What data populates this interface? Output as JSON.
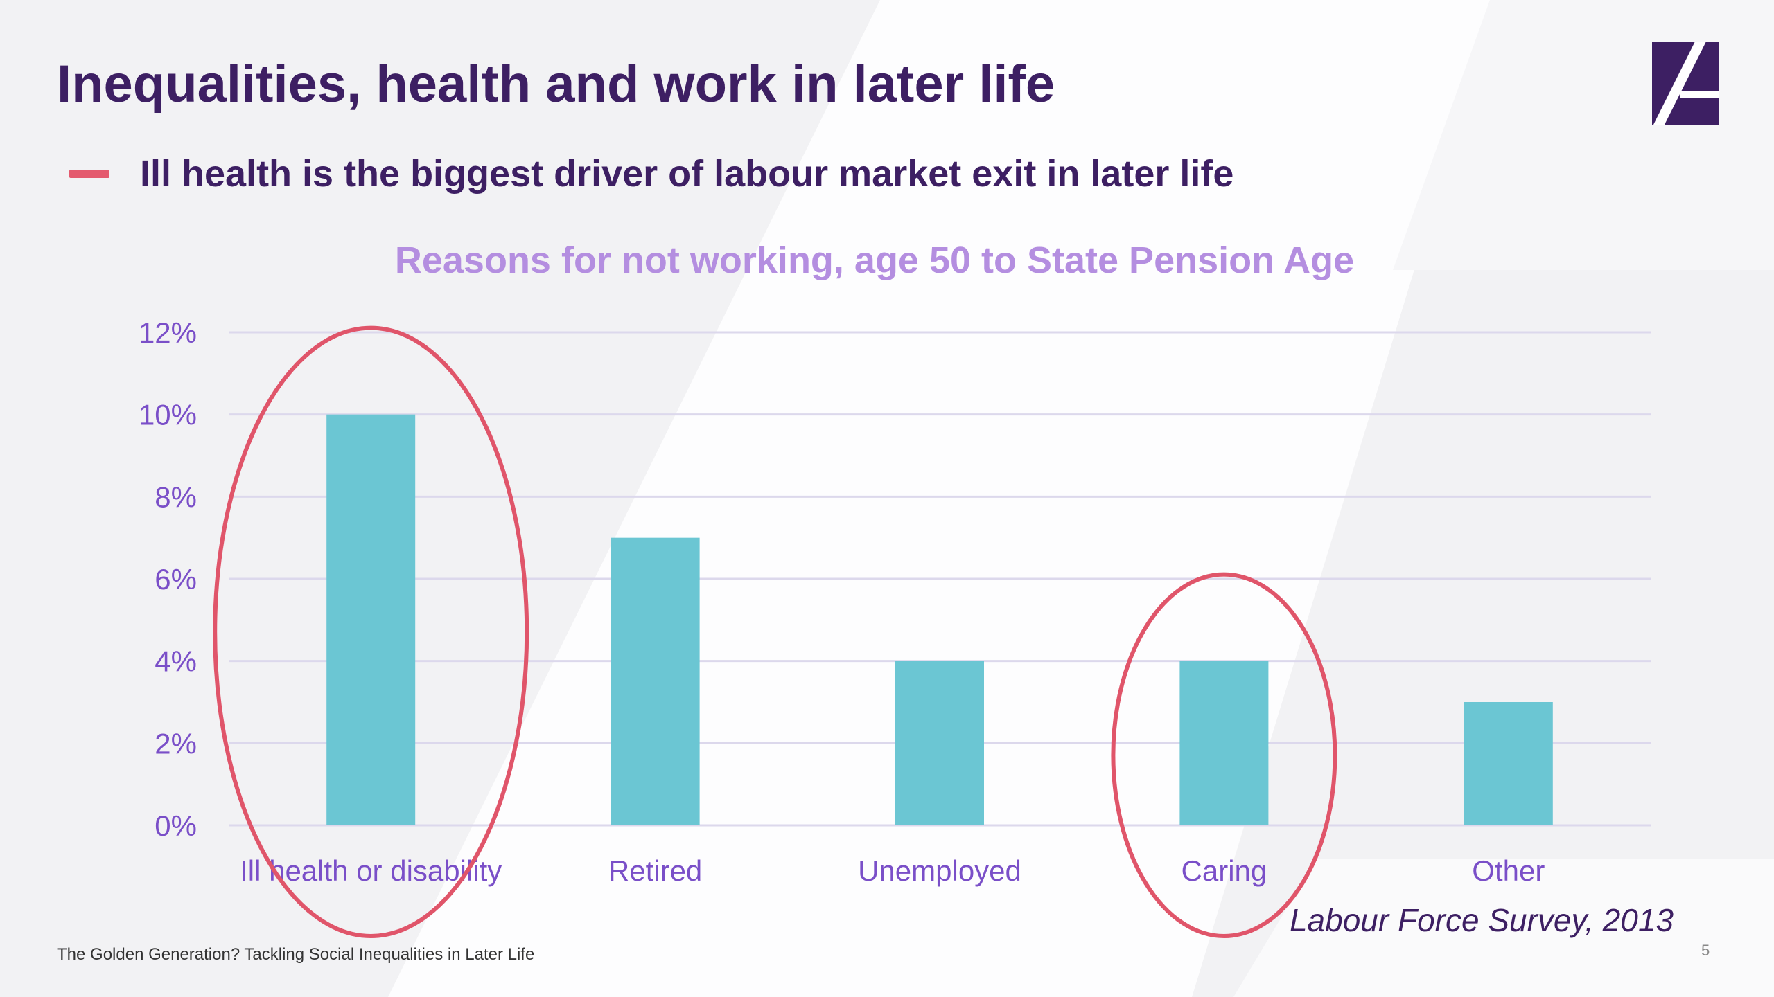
{
  "slide": {
    "title": "Inequalities, health and work in later life",
    "bullet": "Ill health is the biggest driver of labour market exit in later life",
    "source": "Labour Force Survey, 2013",
    "footer": "The Golden Generation? Tackling Social Inequalities in Later Life",
    "page_number": "5",
    "logo_icon": "stylized-A-logo-icon"
  },
  "colors": {
    "title": "#3d1f63",
    "bar": "#6bc6d3",
    "axis_text": "#7a4fc8",
    "chart_title": "#b48ee0",
    "highlight_circle": "#e0556a",
    "gridline": "#dcd8ec"
  },
  "chart_data": {
    "type": "bar",
    "title": "Reasons for not working, age 50 to State Pension Age",
    "categories": [
      "Ill health or disability",
      "Retired",
      "Unemployed",
      "Caring",
      "Other"
    ],
    "values": [
      10,
      7,
      4,
      4,
      3
    ],
    "ylim": [
      0,
      12
    ],
    "yticks": [
      "0%",
      "2%",
      "4%",
      "6%",
      "8%",
      "10%",
      "12%"
    ],
    "grid": true,
    "highlighted_categories": [
      "Ill health or disability",
      "Caring"
    ]
  }
}
